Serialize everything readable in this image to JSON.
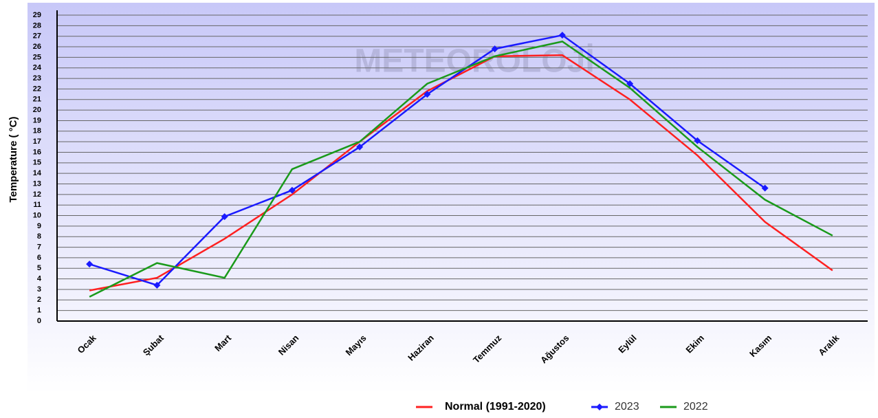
{
  "chart_data": {
    "type": "line",
    "ylabel": "Temperature ( °C)",
    "watermark": "METEOROLOJİ",
    "categories": [
      "Ocak",
      "Şubat",
      "Mart",
      "Nisan",
      "Mayıs",
      "Haziran",
      "Temmuz",
      "Ağustos",
      "Eylül",
      "Ekim",
      "Kasım",
      "Aralık"
    ],
    "series": [
      {
        "name": "Normal (1991-2020)",
        "color": "#ff2020",
        "values": [
          2.9,
          4.1,
          7.8,
          12.0,
          17.0,
          21.8,
          25.1,
          25.2,
          21.0,
          15.7,
          9.4,
          4.8
        ]
      },
      {
        "name": "2023",
        "color": "#1a1aff",
        "marker": "diamond",
        "values": [
          5.4,
          3.4,
          9.9,
          12.4,
          16.5,
          21.5,
          25.8,
          27.1,
          22.5,
          17.1,
          12.6,
          null
        ]
      },
      {
        "name": "2022",
        "color": "#1a9a1a",
        "values": [
          2.3,
          5.5,
          4.1,
          14.4,
          17.0,
          22.5,
          25.1,
          26.5,
          22.1,
          16.5,
          11.5,
          8.1
        ]
      }
    ],
    "ylim": [
      0,
      29
    ],
    "yticks": [
      0,
      1,
      2,
      3,
      4,
      5,
      6,
      7,
      8,
      9,
      10,
      11,
      12,
      13,
      14,
      15,
      16,
      17,
      18,
      19,
      20,
      21,
      22,
      23,
      24,
      25,
      26,
      27,
      28,
      29
    ],
    "grid": true,
    "legend": "bottom"
  }
}
